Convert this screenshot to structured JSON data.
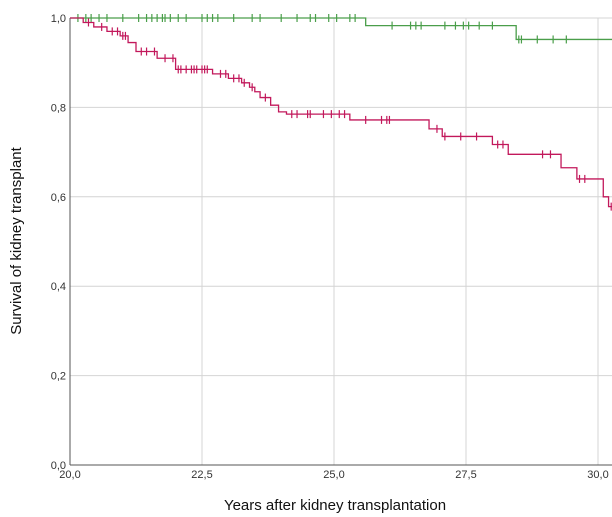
{
  "chart_data": {
    "type": "line",
    "subtype": "kaplan-meier",
    "title": "",
    "xlabel": "Years after kidney transplantation",
    "ylabel": "Survival of kidney transplant",
    "xlim": [
      20.0,
      30.3
    ],
    "ylim": [
      0.0,
      1.0
    ],
    "x_ticks": [
      20.0,
      22.5,
      25.0,
      27.5,
      30.0
    ],
    "x_tick_labels": [
      "20,0",
      "22,5",
      "25,0",
      "27,5",
      "30,0"
    ],
    "y_ticks": [
      0.0,
      0.2,
      0.4,
      0.6,
      0.8,
      1.0
    ],
    "y_tick_labels": [
      "0,0",
      "0,2",
      "0,4",
      "0,6",
      "0,8",
      "1,0"
    ],
    "grid": true,
    "legend": "none",
    "series": [
      {
        "color": "#4a9e4a",
        "steps": [
          [
            20.0,
            1.0
          ],
          [
            25.6,
            0.983
          ],
          [
            28.45,
            0.952
          ],
          [
            30.3,
            0.952
          ]
        ],
        "censored_x": [
          20.15,
          20.3,
          20.4,
          20.55,
          20.7,
          21.0,
          21.3,
          21.45,
          21.55,
          21.65,
          21.75,
          21.8,
          21.9,
          22.05,
          22.2,
          22.5,
          22.6,
          22.7,
          22.8,
          23.1,
          23.45,
          23.6,
          24.0,
          24.3,
          24.55,
          24.65,
          24.9,
          25.05,
          25.3,
          25.4,
          26.1,
          26.45,
          26.55,
          26.65,
          27.1,
          27.3,
          27.45,
          27.55,
          27.75,
          28.0,
          28.5,
          28.55,
          28.85,
          29.15,
          29.4
        ]
      },
      {
        "color": "#c2185b",
        "steps": [
          [
            20.0,
            1.0
          ],
          [
            20.25,
            0.99
          ],
          [
            20.45,
            0.98
          ],
          [
            20.7,
            0.97
          ],
          [
            20.95,
            0.96
          ],
          [
            21.1,
            0.945
          ],
          [
            21.25,
            0.925
          ],
          [
            21.65,
            0.91
          ],
          [
            22.0,
            0.885
          ],
          [
            22.7,
            0.875
          ],
          [
            23.0,
            0.865
          ],
          [
            23.25,
            0.855
          ],
          [
            23.4,
            0.845
          ],
          [
            23.5,
            0.835
          ],
          [
            23.6,
            0.822
          ],
          [
            23.8,
            0.805
          ],
          [
            23.95,
            0.79
          ],
          [
            24.1,
            0.785
          ],
          [
            25.3,
            0.772
          ],
          [
            26.8,
            0.752
          ],
          [
            27.05,
            0.735
          ],
          [
            28.0,
            0.717
          ],
          [
            28.3,
            0.695
          ],
          [
            29.3,
            0.665
          ],
          [
            29.6,
            0.64
          ],
          [
            30.1,
            0.6
          ],
          [
            30.2,
            0.578
          ],
          [
            30.3,
            0.578
          ]
        ],
        "censored_x": [
          20.35,
          20.6,
          20.8,
          20.9,
          21.0,
          21.05,
          21.35,
          21.45,
          21.6,
          21.8,
          21.95,
          22.05,
          22.1,
          22.2,
          22.3,
          22.35,
          22.4,
          22.5,
          22.55,
          22.6,
          22.85,
          22.95,
          23.1,
          23.2,
          23.3,
          23.45,
          23.7,
          24.2,
          24.3,
          24.5,
          24.55,
          24.8,
          24.95,
          25.1,
          25.2,
          25.6,
          25.9,
          26.0,
          26.05,
          26.95,
          27.1,
          27.4,
          27.7,
          28.1,
          28.2,
          28.95,
          29.1,
          29.65,
          29.75,
          30.25
        ]
      }
    ]
  }
}
